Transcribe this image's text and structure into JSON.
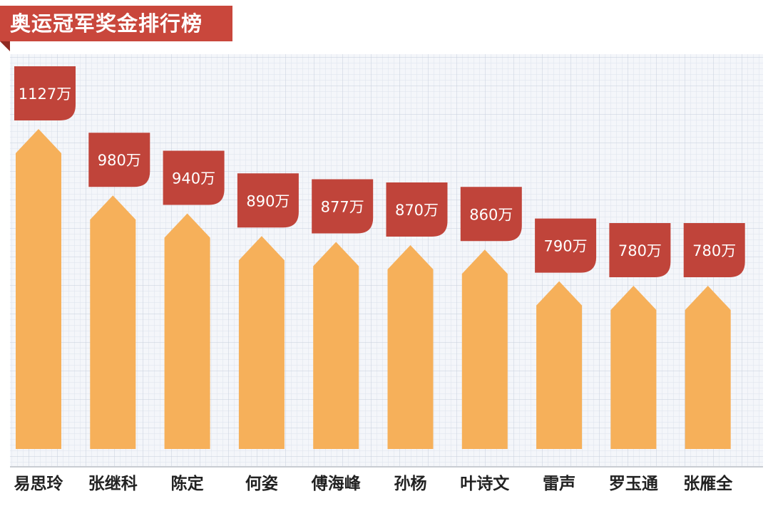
{
  "chart_data": {
    "type": "bar",
    "title": "奥运冠军奖金排行榜",
    "categories": [
      "易思玲",
      "张继科",
      "陈定",
      "何姿",
      "傅海峰",
      "孙杨",
      "叶诗文",
      "雷声",
      "罗玉通",
      "张雁全"
    ],
    "values": [
      1127,
      980,
      940,
      890,
      877,
      870,
      860,
      790,
      780,
      780
    ],
    "value_labels": [
      "1127万",
      "980万",
      "940万",
      "890万",
      "877万",
      "870万",
      "860万",
      "790万",
      "780万",
      "780万"
    ],
    "unit": "万",
    "grid": true,
    "colors": {
      "bar": "#f6b05a",
      "label": "#c0443a",
      "title": "#c9473c"
    }
  }
}
